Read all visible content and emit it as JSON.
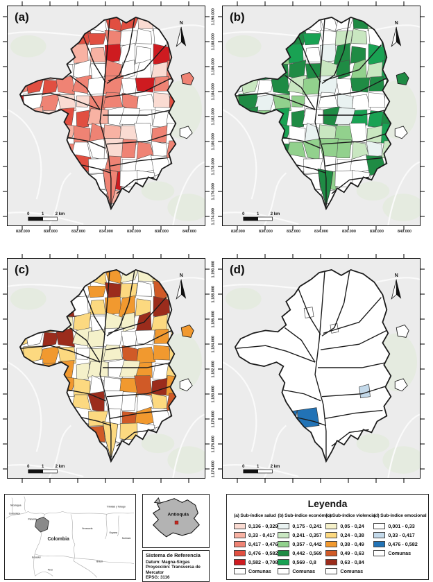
{
  "figure": {
    "north_label": "N",
    "scalebar": {
      "zero": "0",
      "one": "1",
      "two": "2 km"
    }
  },
  "axes": {
    "x_ticks": [
      "828.000",
      "830.000",
      "832.000",
      "834.000",
      "836.000",
      "838.000",
      "840.000"
    ],
    "y_ticks": [
      "1.190.000",
      "1.188.000",
      "1.186.000",
      "1.184.000",
      "1.182.000",
      "1.180.000",
      "1.178.000",
      "1.176.000",
      "1.174.000"
    ]
  },
  "colors": {
    "background": "#ececec",
    "map_fill": "#ffffff",
    "boundary": "#1b1b1b",
    "context_green": "#e3ebdd",
    "road": "#fafafa",
    "inset_gray": "#b3b3b3",
    "medellin_dot": "#c4281f"
  },
  "panels": [
    {
      "id": "a",
      "label": "(a)",
      "palette": [
        "#fadbd2",
        "#f8b2a3",
        "#ef8374",
        "#e14f41",
        "#ce1b20"
      ]
    },
    {
      "id": "b",
      "label": "(b)",
      "palette": [
        "#e9f2f1",
        "#c9e7c1",
        "#92d18d",
        "#1f8b44",
        "#19a253"
      ]
    },
    {
      "id": "c",
      "label": "(c)",
      "palette": [
        "#f5f1ca",
        "#fcd980",
        "#f1992f",
        "#d05a27",
        "#9b2c1c"
      ]
    },
    {
      "id": "d",
      "label": "(d)",
      "palette": [
        "#ffffff",
        "#c3d9ea",
        "#2273b6"
      ]
    }
  ],
  "legend": {
    "title": "Leyenda",
    "comunas_label": "Comunas",
    "sections": [
      {
        "title": "(a) Sub-índice salud",
        "items": [
          {
            "range": "0,136 - 0,329",
            "color": "#fadbd2"
          },
          {
            "range": "0,33 - 0,417",
            "color": "#f8b2a3"
          },
          {
            "range": "0,417 - 0,476",
            "color": "#ef8374"
          },
          {
            "range": "0,476 - 0,582",
            "color": "#e14f41"
          },
          {
            "range": "0,582 - 0,708",
            "color": "#ce1b20"
          }
        ]
      },
      {
        "title": "(b) Sub-índice económico",
        "items": [
          {
            "range": "0,175 - 0,241",
            "color": "#e9f2f1"
          },
          {
            "range": "0,241 - 0,357",
            "color": "#c9e7c1"
          },
          {
            "range": "0,357 - 0,442",
            "color": "#92d18d"
          },
          {
            "range": "0,442 - 0,569",
            "color": "#1f8b44"
          },
          {
            "range": "0,569 - 0,8",
            "color": "#19a253"
          }
        ]
      },
      {
        "title": "(c) Sub-índice violencia",
        "items": [
          {
            "range": "0,05 - 0,24",
            "color": "#f5f1ca"
          },
          {
            "range": "0,24 - 0,38",
            "color": "#fcd980"
          },
          {
            "range": "0,38 - 0,49",
            "color": "#f1992f"
          },
          {
            "range": "0,49 - 0,63",
            "color": "#d05a27"
          },
          {
            "range": "0,63 - 0,84",
            "color": "#9b2c1c"
          }
        ]
      },
      {
        "title": "(d) Sub-índice emocional",
        "items": [
          {
            "range": "0,001 - 0,33",
            "color": "#ffffff"
          },
          {
            "range": "0,33 - 0,417",
            "color": "#c3d9ea"
          },
          {
            "range": "0,476 - 0,582",
            "color": "#2273b6"
          }
        ]
      }
    ]
  },
  "insets": {
    "colombia": {
      "country_labels": [
        "Nicaragua",
        "Costa Rica",
        "Panamá",
        "Colombia",
        "Venezuela",
        "Trinidad y Tobago",
        "Guyana",
        "Surinam",
        "Brasil",
        "Ecuador",
        "Perú"
      ]
    },
    "antioquia": {
      "label": "Antioquia"
    },
    "reference": {
      "title": "Sistema de Referencia",
      "lines": [
        "Datum: Magna-Sirgas",
        "Proyección: Transversa de Mercator",
        "EPSG: 3116"
      ]
    }
  }
}
